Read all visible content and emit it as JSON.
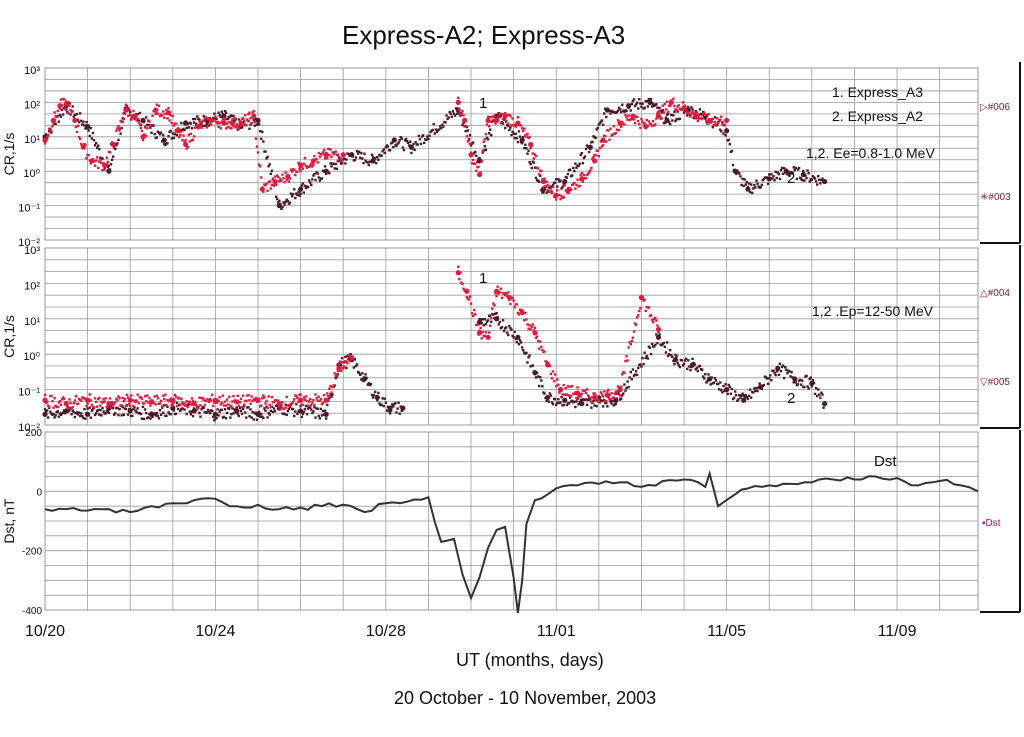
{
  "title": "Express-A2; Express-A3",
  "xlabel": "UT (months, days)",
  "subtitle": "20 October - 10 November, 2003",
  "colors": {
    "red": "#e8183a",
    "dark": "#4a1a28",
    "dst": "#333333",
    "grid": "#9a9a9a",
    "legend_code": "#7a1a33",
    "dst_code": "#a0206a"
  },
  "legend_codes": {
    "p1_top": "▷#006",
    "p1_bottom": "✳#003",
    "p2_top": "△#004",
    "p2_bottom": "▽#005",
    "p3": "▪Dst"
  },
  "chart_data": [
    {
      "type": "scatter",
      "ylabel": "CR,1/s",
      "yscale": "log",
      "ylim": [
        0.01,
        1000
      ],
      "yticks": [
        "10^3",
        "10^2",
        "10^1",
        "10^0",
        "10^-1",
        "10^-2"
      ],
      "xlim": [
        0,
        21.9
      ],
      "xticks": [
        "10/20",
        "10/24",
        "10/28",
        "11/01",
        "11/05",
        "11/09"
      ],
      "grid": true,
      "legend": [
        "1. Express_A3",
        "2. Express_A2"
      ],
      "annotation": "1,2. Ee=0.8-1.0 MeV",
      "series_labels": [
        "1",
        "2"
      ],
      "series": [
        {
          "name": "1. Express_A3",
          "color": "#e8183a",
          "x": [
            0.0,
            0.2,
            0.35,
            0.5,
            0.7,
            0.9,
            1.1,
            1.4,
            1.6,
            1.9,
            2.1,
            2.3,
            2.6,
            2.9,
            3.1,
            3.3,
            3.6,
            3.9,
            4.2,
            4.4,
            4.6,
            4.9,
            5.1,
            5.4,
            5.7,
            6.0,
            6.3,
            6.6,
            7.0,
            9.7,
            9.85,
            10.0,
            10.2,
            10.4,
            10.6,
            10.8,
            11.1,
            11.4,
            11.7,
            12.0,
            12.3,
            12.6,
            12.9,
            13.1,
            13.5,
            13.8,
            14.1,
            14.4,
            14.7,
            15.0,
            15.3,
            15.6,
            16.0
          ],
          "y": [
            8,
            30,
            80,
            90,
            30,
            5,
            2,
            1.5,
            6,
            60,
            40,
            10,
            60,
            50,
            15,
            6,
            20,
            30,
            25,
            25,
            25,
            40,
            0.3,
            0.5,
            0.7,
            1.5,
            2,
            3,
            3,
            100,
            30,
            3,
            0.8,
            30,
            30,
            40,
            25,
            6,
            0.5,
            0.2,
            0.3,
            0.6,
            2,
            8,
            25,
            40,
            20,
            40,
            100,
            70,
            40,
            30,
            30
          ]
        },
        {
          "name": "2. Express_A2",
          "color": "#4a1a28",
          "x": [
            0.0,
            0.5,
            1.0,
            1.5,
            1.9,
            2.3,
            2.8,
            3.3,
            3.8,
            4.2,
            4.6,
            5.0,
            5.5,
            6.0,
            6.6,
            7.2,
            7.7,
            8.2,
            8.6,
            9.7,
            10.2,
            10.6,
            11.2,
            11.7,
            12.2,
            12.8,
            13.2,
            13.7,
            14.2,
            14.6,
            15.1,
            15.5,
            16.0,
            16.2,
            16.5,
            17.0,
            17.4,
            17.8,
            18.3
          ],
          "y": [
            10,
            80,
            20,
            1,
            60,
            30,
            8,
            25,
            30,
            40,
            20,
            30,
            0.1,
            0.3,
            1,
            3,
            2,
            8,
            5,
            60,
            2,
            40,
            8,
            0.3,
            0.5,
            5,
            60,
            80,
            100,
            30,
            60,
            40,
            15,
            1,
            0.3,
            0.6,
            1,
            0.8,
            0.5
          ]
        }
      ]
    },
    {
      "type": "scatter",
      "ylabel": "CR,1/s",
      "yscale": "log",
      "ylim": [
        0.01,
        1000
      ],
      "yticks": [
        "10^3",
        "10^2",
        "10^1",
        "10^0",
        "10^-1",
        "10^-2"
      ],
      "xlim": [
        0,
        21.9
      ],
      "grid": true,
      "annotation": "1,2 .Ep=12-50 MeV",
      "series_labels": [
        "1",
        "2"
      ],
      "series": [
        {
          "name": "1. Express_A3",
          "color": "#e8183a",
          "x": [
            0.0,
            0.5,
            1.0,
            1.5,
            2.0,
            2.5,
            3.0,
            3.5,
            4.0,
            4.5,
            5.0,
            5.5,
            6.0,
            6.6,
            6.9,
            7.2,
            9.7,
            9.9,
            10.2,
            10.4,
            10.6,
            10.9,
            11.2,
            11.5,
            11.8,
            12.1,
            12.5,
            12.9,
            13.2,
            13.5,
            14.0,
            14.4
          ],
          "y": [
            0.05,
            0.04,
            0.05,
            0.04,
            0.05,
            0.045,
            0.05,
            0.04,
            0.05,
            0.045,
            0.05,
            0.04,
            0.05,
            0.05,
            0.4,
            0.8,
            200,
            60,
            4,
            3,
            60,
            40,
            15,
            4,
            0.5,
            0.1,
            0.08,
            0.06,
            0.07,
            0.1,
            40,
            5
          ]
        },
        {
          "name": "2. Express_A2",
          "color": "#4a1a28",
          "x": [
            0.0,
            0.5,
            1.0,
            1.5,
            2.0,
            2.5,
            3.0,
            3.5,
            4.0,
            4.5,
            5.0,
            5.5,
            6.0,
            6.6,
            6.9,
            7.2,
            7.5,
            7.8,
            8.1,
            8.4,
            10.2,
            10.6,
            11.1,
            11.5,
            11.8,
            12.2,
            12.6,
            13.0,
            13.4,
            14.4,
            14.8,
            15.2,
            15.6,
            16.0,
            16.4,
            16.8,
            17.2,
            17.6,
            18.0,
            18.3
          ],
          "y": [
            0.02,
            0.025,
            0.02,
            0.03,
            0.025,
            0.02,
            0.03,
            0.025,
            0.02,
            0.025,
            0.02,
            0.03,
            0.025,
            0.02,
            0.5,
            0.7,
            0.2,
            0.06,
            0.03,
            0.03,
            8,
            10,
            3,
            0.3,
            0.06,
            0.05,
            0.04,
            0.05,
            0.05,
            3,
            0.7,
            0.5,
            0.2,
            0.1,
            0.05,
            0.12,
            0.4,
            0.2,
            0.15,
            0.04
          ]
        }
      ]
    },
    {
      "type": "line",
      "ylabel": "Dst, nT",
      "ylim": [
        -400,
        200
      ],
      "yticks": [
        200,
        0,
        -200,
        -400
      ],
      "xlim": [
        0,
        21.9
      ],
      "grid": true,
      "series_label": "Dst",
      "series": [
        {
          "name": "Dst",
          "color": "#333333",
          "x": [
            0,
            0.5,
            1.0,
            1.5,
            2.0,
            2.5,
            3.0,
            3.5,
            4.0,
            4.5,
            5.0,
            5.5,
            6.0,
            6.5,
            7.0,
            7.5,
            8.0,
            8.5,
            9.0,
            9.3,
            9.6,
            9.8,
            10.0,
            10.2,
            10.4,
            10.6,
            10.8,
            11.0,
            11.1,
            11.2,
            11.3,
            11.5,
            11.8,
            12.0,
            12.5,
            13.0,
            13.5,
            14.0,
            14.5,
            15.0,
            15.5,
            15.6,
            15.8,
            16.2,
            16.5,
            17.0,
            17.5,
            18.0,
            18.5,
            19.0,
            19.5,
            20.0,
            20.5,
            21.0,
            21.5,
            21.9
          ],
          "y": [
            -60,
            -60,
            -65,
            -60,
            -70,
            -50,
            -40,
            -30,
            -25,
            -50,
            -45,
            -60,
            -55,
            -50,
            -45,
            -70,
            -40,
            -35,
            -20,
            -170,
            -160,
            -280,
            -360,
            -290,
            -190,
            -130,
            -120,
            -290,
            -410,
            -300,
            -110,
            -30,
            -10,
            10,
            20,
            25,
            30,
            15,
            35,
            40,
            15,
            60,
            -50,
            -10,
            10,
            20,
            25,
            30,
            40,
            40,
            50,
            45,
            20,
            35,
            20,
            0
          ]
        }
      ]
    }
  ]
}
